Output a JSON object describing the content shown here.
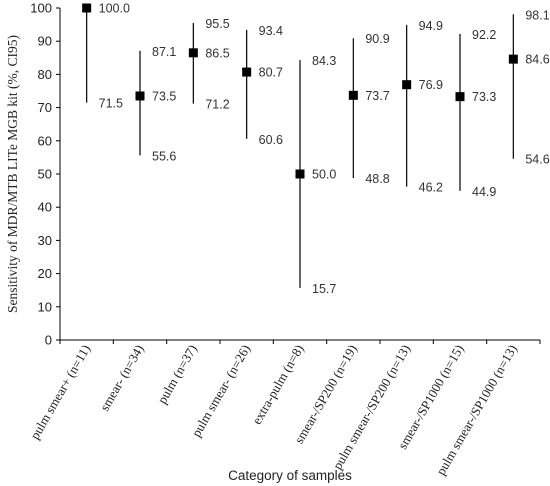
{
  "chart_data": {
    "type": "scatter",
    "xlabel": "Category of samples",
    "ylabel": "Sensitivity of MDR/MTB LITe MGB kit (%, CI95)",
    "ylim": [
      0,
      100
    ],
    "yticks": [
      0,
      10,
      20,
      30,
      40,
      50,
      60,
      70,
      80,
      90,
      100
    ],
    "grid": false,
    "error_bars": true,
    "categories": [
      "pulm smear+ (n=11)",
      "smear- (n=34)",
      "pulm (n=37)",
      "pulm smear- (n=26)",
      "extra-pulm (n=8)",
      "smear-/SP200 (n=19)",
      "pulm smear-/SP200 (n=13)",
      "smear-/SP1000 (n=15)",
      "pulm smear-/SP1000 (n=13)"
    ],
    "values": [
      100.0,
      73.5,
      86.5,
      80.7,
      50.0,
      73.7,
      76.9,
      73.3,
      84.6
    ],
    "value_labels": [
      "100.0",
      "73.5",
      "86.5",
      "80.7",
      "50.0",
      "73.7",
      "76.9",
      "73.3",
      "84.6"
    ],
    "upper": [
      100.0,
      87.1,
      95.5,
      93.4,
      84.3,
      90.9,
      94.9,
      92.2,
      98.1
    ],
    "upper_labels": [
      "",
      "87.1",
      "95.5",
      "93.4",
      "84.3",
      "90.9",
      "94.9",
      "92.2",
      "98.1"
    ],
    "lower": [
      71.5,
      55.6,
      71.2,
      60.6,
      15.7,
      48.8,
      46.2,
      44.9,
      54.6
    ],
    "lower_labels": [
      "71.5",
      "55.6",
      "71.2",
      "60.6",
      "15.7",
      "48.8",
      "46.2",
      "44.9",
      "54.6"
    ]
  }
}
